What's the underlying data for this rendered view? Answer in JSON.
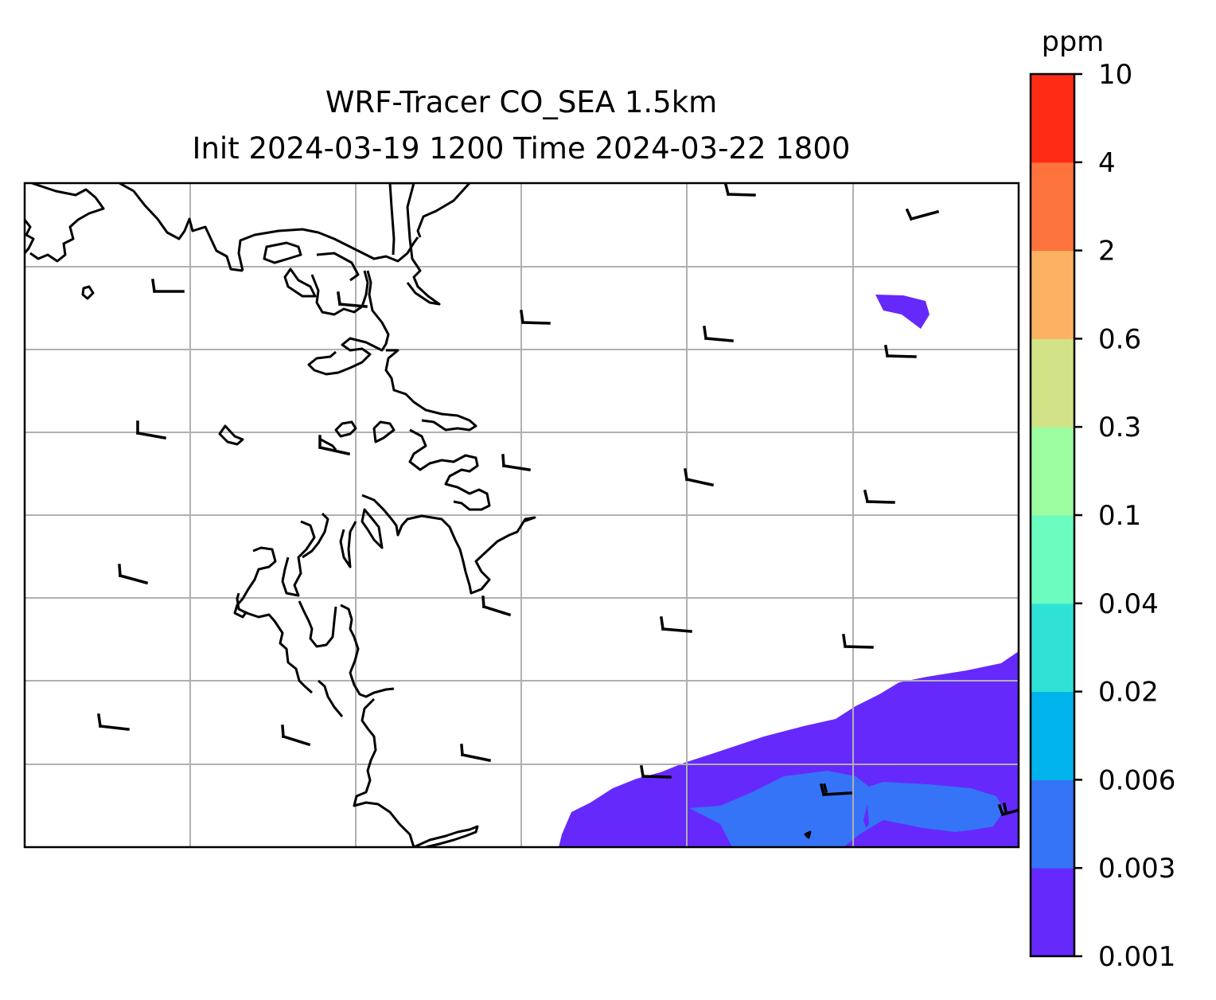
{
  "title": {
    "line1": "WRF-Tracer CO_SEA 1.5km",
    "line2": "Init 2024-03-19 1200 Time 2024-03-22 1800"
  },
  "colorbar": {
    "unit": "ppm",
    "levels": [
      "0.001",
      "0.003",
      "0.006",
      "0.02",
      "0.04",
      "0.1",
      "0.3",
      "0.6",
      "2",
      "4",
      "10"
    ],
    "colors": [
      "#6529fc",
      "#3574f6",
      "#00b3ec",
      "#30e2d6",
      "#6afdbf",
      "#9cfda1",
      "#d1e386",
      "#fdb263",
      "#fc733d",
      "#fe2b15"
    ]
  },
  "map": {
    "gridlines": true,
    "coastline_color": "#000000",
    "grid_color": "#b0b0b0",
    "plume_colors": {
      "light": "#6529fc",
      "denser": "#3574f6"
    }
  },
  "chart_data": {
    "type": "heatmap",
    "variable": "CO_SEA tracer concentration",
    "unit": "ppm",
    "color_levels": [
      0.001,
      0.003,
      0.006,
      0.02,
      0.04,
      0.1,
      0.3,
      0.6,
      2,
      4,
      10
    ],
    "visible_concentration_ranges": [
      "0.001-0.003",
      "0.003-0.006"
    ],
    "plume_location": "bottom-right corner plus small patch near top-right",
    "wind_barbs": true,
    "gridlines": true
  }
}
